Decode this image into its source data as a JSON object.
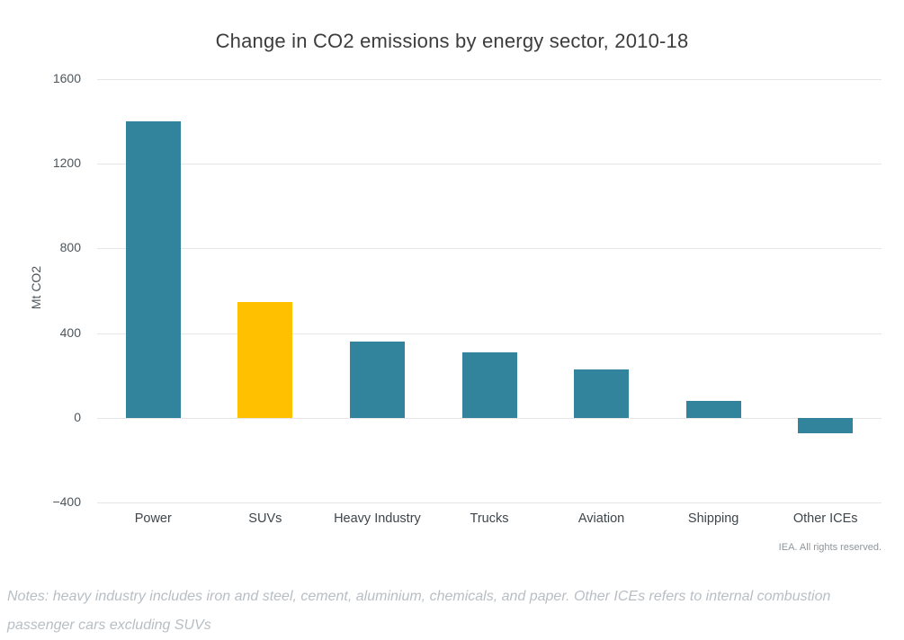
{
  "page": {
    "source": "IEA. All rights reserved.",
    "notes": "Notes: heavy industry includes iron and steel, cement, aluminium, chemicals, and paper. Other ICEs refers to internal combustion passenger cars excluding SUVs"
  },
  "chart_data": {
    "type": "bar",
    "title": "Change in CO2 emissions by energy sector, 2010-18",
    "categories": [
      "Power",
      "SUVs",
      "Heavy Industry",
      "Trucks",
      "Aviation",
      "Shipping",
      "Other ICEs"
    ],
    "values": [
      1400,
      545,
      360,
      310,
      230,
      80,
      -75
    ],
    "xlabel": "",
    "ylabel": "Mt CO2",
    "ylim": [
      -400,
      1600
    ],
    "yticks": [
      1600,
      1200,
      800,
      400,
      0,
      -400
    ],
    "grid": true,
    "legend": false,
    "unit": "Mt CO2",
    "highlight_category": "SUVs",
    "colors": {
      "bar_default": "#31849b",
      "bar_highlight": "#ffc000",
      "gridline": "#e6e6e6",
      "title_text": "#3d3d3d",
      "axis_text": "#4d555b",
      "notes_text": "#b8bec4",
      "source_text": "#8e969c"
    }
  }
}
